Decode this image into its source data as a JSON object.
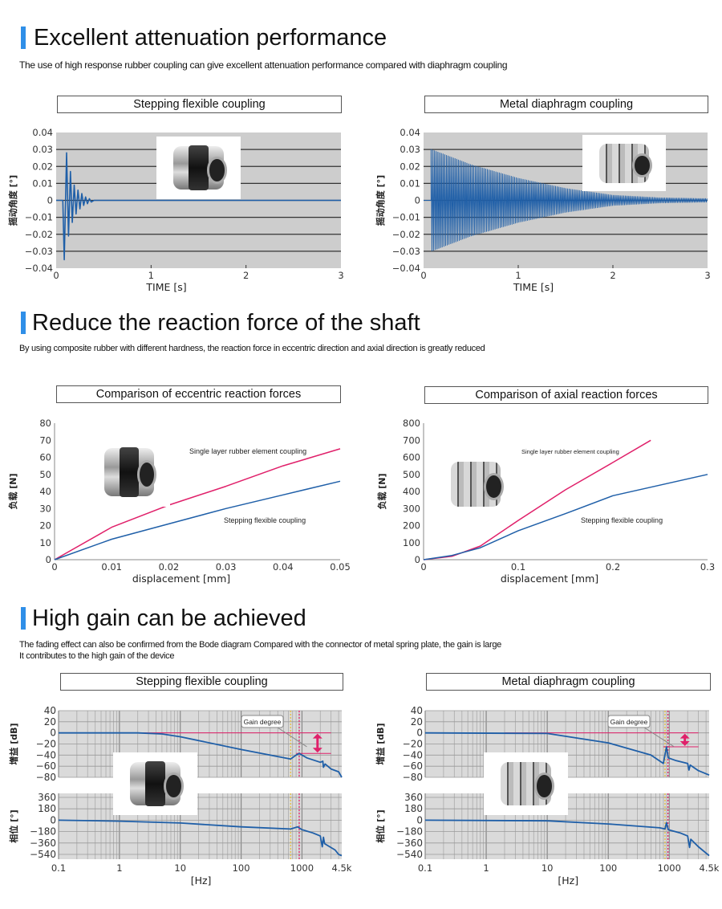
{
  "sections": [
    {
      "title": "Excellent attenuation performance",
      "subtitle": [
        "The use of high response rubber coupling can give excellent attenuation performance compared with diaphragm coupling"
      ]
    },
    {
      "title": "Reduce the reaction force of the shaft",
      "subtitle": [
        "By using composite rubber with different hardness, the reaction force in eccentric direction and axial direction is greatly reduced"
      ]
    },
    {
      "title": "High gain can be achieved",
      "subtitle": [
        "The fading effect can also be confirmed from the Bode diagram Compared with the connector of metal spring plate, the gain is large",
        "It contributes to the high gain of the device"
      ]
    }
  ],
  "colors": {
    "accent": "#2f8fe8",
    "blue_series": "#1f5fa8",
    "pink_series": "#e0206a",
    "yellow_line": "#e8c040"
  },
  "chart_data": [
    {
      "type": "line",
      "title": "Stepping flexible coupling",
      "xlabel": "TIME [s]",
      "ylabel": "摇动角度 [°]",
      "xlim": [
        0,
        3
      ],
      "ylim": [
        -0.04,
        0.04
      ],
      "xticks": [
        "0",
        "1",
        "2",
        "3"
      ],
      "yticks": [
        "0.04",
        "0.03",
        "0.02",
        "0.01",
        "0",
        "−0.01",
        "−0.02",
        "−0.03",
        "−0.04"
      ],
      "grid": "horizontal",
      "photo": "rubber-coupling",
      "series": [
        {
          "points": [
            [
              0,
              0
            ],
            [
              0.07,
              0
            ],
            [
              0.085,
              -0.035
            ],
            [
              0.11,
              0.028
            ],
            [
              0.13,
              -0.021
            ],
            [
              0.15,
              0.017
            ],
            [
              0.17,
              -0.013
            ],
            [
              0.19,
              0.009
            ],
            [
              0.21,
              -0.008
            ],
            [
              0.23,
              0.006
            ],
            [
              0.25,
              -0.005
            ],
            [
              0.27,
              0.004
            ],
            [
              0.29,
              -0.003
            ],
            [
              0.31,
              0.002
            ],
            [
              0.33,
              -0.002
            ],
            [
              0.35,
              0.001
            ],
            [
              0.37,
              -0.001
            ],
            [
              0.4,
              0
            ],
            [
              3,
              0
            ]
          ]
        }
      ]
    },
    {
      "type": "line",
      "title": "Metal diaphragm coupling",
      "xlabel": "TIME [s]",
      "ylabel": "摇动角度 [°]",
      "xlim": [
        0,
        3
      ],
      "ylim": [
        -0.04,
        0.04
      ],
      "xticks": [
        "0",
        "1",
        "2",
        "3"
      ],
      "yticks": [
        "0.04",
        "0.03",
        "0.02",
        "0.01",
        "0",
        "−0.01",
        "−0.02",
        "−0.03",
        "−0.04"
      ],
      "grid": "horizontal",
      "photo": "metal-diaphragm-coupling",
      "series": [
        {
          "envelope": [
            [
              0.08,
              0.03
            ],
            [
              0.5,
              0.021
            ],
            [
              1,
              0.013
            ],
            [
              1.5,
              0.007
            ],
            [
              2,
              0.003
            ],
            [
              2.5,
              0.0015
            ],
            [
              3,
              0.001
            ]
          ]
        }
      ]
    },
    {
      "type": "line",
      "title": "Comparison of eccentric reaction forces",
      "xlabel": "displacement [mm]",
      "ylabel": "负载 [N]",
      "xlim": [
        0,
        0.05
      ],
      "ylim": [
        0,
        80
      ],
      "xticks": [
        "0",
        "0.01",
        "0.02",
        "0.03",
        "0.04",
        "0.05"
      ],
      "yticks": [
        "80",
        "70",
        "60",
        "50",
        "40",
        "30",
        "20",
        "10",
        "0"
      ],
      "grid": "none",
      "photo": "rubber-coupling",
      "series": [
        {
          "name": "Single layer rubber element coupling",
          "color": "pink",
          "points": [
            [
              0,
              0
            ],
            [
              0.01,
              19
            ],
            [
              0.02,
              32
            ],
            [
              0.03,
              43
            ],
            [
              0.04,
              55
            ],
            [
              0.05,
              65
            ]
          ]
        },
        {
          "name": "Stepping flexible coupling",
          "color": "blue",
          "points": [
            [
              0,
              0
            ],
            [
              0.01,
              12
            ],
            [
              0.02,
              21
            ],
            [
              0.03,
              30
            ],
            [
              0.04,
              38
            ],
            [
              0.05,
              46
            ]
          ]
        }
      ]
    },
    {
      "type": "line",
      "title": "Comparison of axial reaction forces",
      "xlabel": "displacement [mm]",
      "ylabel": "负载 [N]",
      "xlim": [
        0,
        0.3
      ],
      "ylim": [
        0,
        800
      ],
      "xticks": [
        "0",
        "0.1",
        "0.2",
        "0.3"
      ],
      "yticks": [
        "800",
        "700",
        "600",
        "500",
        "400",
        "300",
        "200",
        "100",
        "0"
      ],
      "grid": "none",
      "photo": "metal-diaphragm-coupling",
      "series": [
        {
          "name": "Single layer rubber element coupling",
          "color": "pink",
          "points": [
            [
              0,
              0
            ],
            [
              0.03,
              20
            ],
            [
              0.06,
              80
            ],
            [
              0.1,
              230
            ],
            [
              0.15,
              410
            ],
            [
              0.2,
              570
            ],
            [
              0.24,
              700
            ]
          ]
        },
        {
          "name": "Stepping flexible coupling",
          "color": "blue",
          "points": [
            [
              0,
              0
            ],
            [
              0.03,
              25
            ],
            [
              0.06,
              70
            ],
            [
              0.1,
              170
            ],
            [
              0.15,
              270
            ],
            [
              0.2,
              375
            ],
            [
              0.3,
              500
            ]
          ]
        }
      ]
    },
    {
      "type": "line",
      "title": "Stepping flexible coupling",
      "xscale": "log",
      "xlim": [
        0.1,
        4500
      ],
      "xlabel": "[Hz]",
      "xticks": [
        "0.1",
        "1",
        "10",
        "100",
        "1000",
        "4.5k"
      ],
      "photo": "rubber-coupling",
      "annotation": "Gain degree",
      "gain": {
        "ylabel": "增益 [dB]",
        "ylim": [
          -80,
          40
        ],
        "yticks": [
          "40",
          "20",
          "0",
          "−20",
          "−40",
          "−60",
          "−80"
        ],
        "points": [
          [
            0.1,
            0
          ],
          [
            2,
            0
          ],
          [
            5,
            -2
          ],
          [
            10,
            -7
          ],
          [
            100,
            -30
          ],
          [
            650,
            -47
          ],
          [
            800,
            -40
          ],
          [
            900,
            -37
          ],
          [
            1200,
            -45
          ],
          [
            2000,
            -53
          ],
          [
            2200,
            -51
          ],
          [
            2250,
            -62
          ],
          [
            2400,
            -56
          ],
          [
            3000,
            -65
          ],
          [
            4000,
            -70
          ],
          [
            4500,
            -80
          ]
        ]
      },
      "phase": {
        "ylabel": "相位 [°]",
        "ylim": [
          -540,
          360
        ],
        "yticks": [
          "360",
          "180",
          "0",
          "−180",
          "−360",
          "−540"
        ],
        "points": [
          [
            0.1,
            0
          ],
          [
            1,
            -15
          ],
          [
            10,
            -45
          ],
          [
            100,
            -105
          ],
          [
            650,
            -140
          ],
          [
            850,
            -105
          ],
          [
            1000,
            -150
          ],
          [
            1500,
            -200
          ],
          [
            2000,
            -250
          ],
          [
            2150,
            -420
          ],
          [
            2250,
            -270
          ],
          [
            2350,
            -370
          ],
          [
            3500,
            -470
          ],
          [
            4000,
            -540
          ],
          [
            4500,
            -560
          ]
        ]
      },
      "markers": {
        "yellow_hz": 650,
        "pink_hz": 900,
        "gain_ref_db": 0,
        "gain_peak_db": -37
      }
    },
    {
      "type": "line",
      "title": "Metal diaphragm coupling",
      "xscale": "log",
      "xlim": [
        0.1,
        4500
      ],
      "xlabel": "[Hz]",
      "xticks": [
        "0.1",
        "1",
        "10",
        "100",
        "1000",
        "4.5k"
      ],
      "photo": "metal-diaphragm-coupling",
      "annotation": "Gain degree",
      "gain": {
        "ylabel": "增益 [dB]",
        "ylim": [
          -80,
          40
        ],
        "yticks": [
          "40",
          "20",
          "0",
          "−20",
          "−40",
          "−60",
          "−80"
        ],
        "points": [
          [
            0.1,
            0
          ],
          [
            10,
            -1
          ],
          [
            100,
            -18
          ],
          [
            500,
            -40
          ],
          [
            800,
            -55
          ],
          [
            900,
            -25
          ],
          [
            960,
            -45
          ],
          [
            1300,
            -50
          ],
          [
            2000,
            -55
          ],
          [
            2100,
            -67
          ],
          [
            2200,
            -58
          ],
          [
            3000,
            -68
          ],
          [
            4500,
            -76
          ]
        ]
      },
      "phase": {
        "ylabel": "相位 [°]",
        "ylim": [
          -540,
          360
        ],
        "yticks": [
          "360",
          "180",
          "0",
          "−180",
          "−360",
          "−540"
        ],
        "points": [
          [
            0.1,
            0
          ],
          [
            10,
            -10
          ],
          [
            100,
            -60
          ],
          [
            700,
            -120
          ],
          [
            850,
            -140
          ],
          [
            900,
            -40
          ],
          [
            960,
            -150
          ],
          [
            1500,
            -200
          ],
          [
            2000,
            -250
          ],
          [
            2150,
            -430
          ],
          [
            2250,
            -300
          ],
          [
            3000,
            -420
          ],
          [
            4500,
            -560
          ]
        ]
      },
      "markers": {
        "yellow_hz": 850,
        "pink_hz": 950,
        "gain_ref_db": 0,
        "gain_peak_db": -25
      }
    }
  ]
}
